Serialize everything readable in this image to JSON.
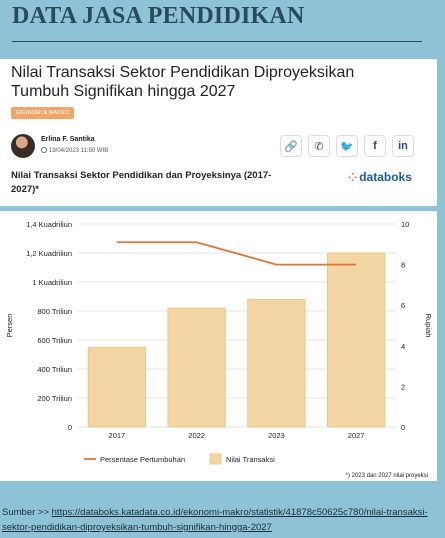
{
  "slide": {
    "title": "DATA JASA PENDIDIKAN"
  },
  "article": {
    "headline": "Nilai Transaksi Sektor Pendidikan Diproyeksikan Tumbuh Signifikan hingga 2027",
    "category": "EKONOMI & MAKRO",
    "author": "Erlina F. Santika",
    "date": "19/04/2023 11:50 WIB",
    "share_icons": [
      "link-icon",
      "whatsapp-icon",
      "twitter-icon",
      "facebook-icon",
      "linkedin-icon"
    ],
    "share_glyphs": [
      "🔗",
      "✆",
      "🐦",
      "f",
      "in"
    ],
    "brand": "databoks"
  },
  "chart_data": {
    "type": "bar+line",
    "title": "Nilai Transaksi Sektor Pendidikan dan Proyeksinya (2017-2027)*",
    "categories": [
      "2017",
      "2022",
      "2023",
      "2027"
    ],
    "series": [
      {
        "name": "Nilai Transaksi",
        "type": "bar",
        "axis": "left",
        "color": "#f4d6a4",
        "unit": "Triliun",
        "values": [
          550,
          820,
          880,
          1200
        ]
      },
      {
        "name": "Persentase Pertumbuhan",
        "type": "line",
        "axis": "right",
        "color": "#e0733c",
        "values": [
          9.1,
          9.1,
          8.0,
          8.0
        ]
      }
    ],
    "left_axis": {
      "label": "Persen",
      "ylim": [
        0,
        1400
      ],
      "ticks": [
        "0",
        "200 Triliun",
        "400 Triliun",
        "600 Triliun",
        "800 Triliun",
        "1 Kuadriliun",
        "1,2 Kuadriliun",
        "1,4 Kuadriliun"
      ]
    },
    "right_axis": {
      "label": "Rupiah",
      "ylim": [
        0,
        10
      ],
      "ticks": [
        "0",
        "2",
        "4",
        "6",
        "8",
        "10"
      ]
    },
    "legend": [
      "Persentase Pertumbuhan",
      "Nilai Transaksi"
    ],
    "legend_position": "bottom",
    "note": "*) 2023 dan 2027 nilai proyeksi",
    "grid": true
  },
  "source": {
    "prefix": "Sumber >> ",
    "url": "https://databoks.katadata.co.id/ekonomi-makro/statistik/41878c50625c780/nilai-transaksi-sektor-pendidikan-diproyeksikan-tumbuh-signifikan-hingga-2027"
  }
}
